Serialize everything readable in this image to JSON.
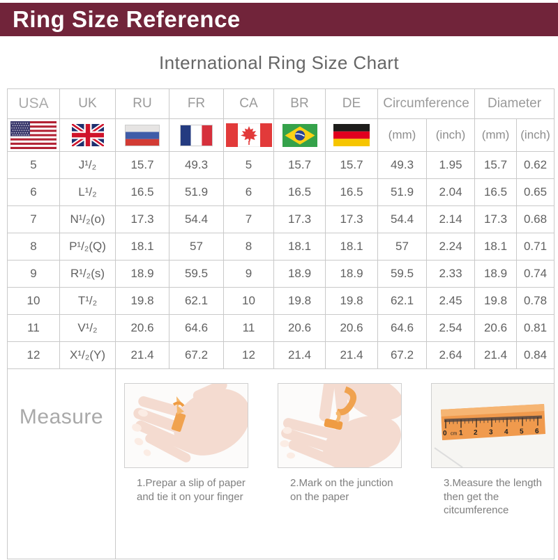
{
  "banner": {
    "title": "Ring Size Reference"
  },
  "chart_title": "International Ring Size Chart",
  "colors": {
    "banner_bg": "#71243a",
    "border": "#c9c9c9",
    "text_gray": "#666666",
    "orange_paper": "#f09a4d"
  },
  "table": {
    "col_headers": {
      "usa": "USA",
      "uk": "UK",
      "ru": "RU",
      "fr": "FR",
      "ca": "CA",
      "br": "BR",
      "de": "DE",
      "circumference": "Circumference",
      "diameter": "Diameter",
      "mm": "(mm)",
      "inch": "(inch)"
    }
  },
  "chart_data": {
    "type": "table",
    "title": "International Ring Size Chart",
    "columns": [
      "USA",
      "UK",
      "RU",
      "FR",
      "CA",
      "BR",
      "DE",
      "Circumference (mm)",
      "Circumference (inch)",
      "Diameter (mm)",
      "Diameter (inch)"
    ],
    "rows": [
      [
        "5",
        "J¹/₂",
        "15.7",
        "49.3",
        "5",
        "15.7",
        "15.7",
        "49.3",
        "1.95",
        "15.7",
        "0.62"
      ],
      [
        "6",
        "L¹/₂",
        "16.5",
        "51.9",
        "6",
        "16.5",
        "16.5",
        "51.9",
        "2.04",
        "16.5",
        "0.65"
      ],
      [
        "7",
        "N¹/₂(o)",
        "17.3",
        "54.4",
        "7",
        "17.3",
        "17.3",
        "54.4",
        "2.14",
        "17.3",
        "0.68"
      ],
      [
        "8",
        "P¹/₂(Q)",
        "18.1",
        "57",
        "8",
        "18.1",
        "18.1",
        "57",
        "2.24",
        "18.1",
        "0.71"
      ],
      [
        "9",
        "R¹/₂(s)",
        "18.9",
        "59.5",
        "9",
        "18.9",
        "18.9",
        "59.5",
        "2.33",
        "18.9",
        "0.74"
      ],
      [
        "10",
        "T¹/₂",
        "19.8",
        "62.1",
        "10",
        "19.8",
        "19.8",
        "62.1",
        "2.45",
        "19.8",
        "0.78"
      ],
      [
        "11",
        "V¹/₂",
        "20.6",
        "64.6",
        "11",
        "20.6",
        "20.6",
        "64.6",
        "2.54",
        "20.6",
        "0.81"
      ],
      [
        "12",
        "X¹/₂(Y)",
        "21.4",
        "67.2",
        "12",
        "21.4",
        "21.4",
        "67.2",
        "2.64",
        "21.4",
        "0.84"
      ]
    ]
  },
  "measure": {
    "label": "Measure",
    "steps": [
      {
        "caption": "1.Prepar a slip of paper and tie it on your finger"
      },
      {
        "caption": "2.Mark on the junction on the paper"
      },
      {
        "caption": "3.Measure the length then get the citcumference"
      }
    ],
    "ruler_labels": [
      "0",
      "cm",
      "1",
      "2",
      "3",
      "4",
      "5",
      "6"
    ]
  }
}
